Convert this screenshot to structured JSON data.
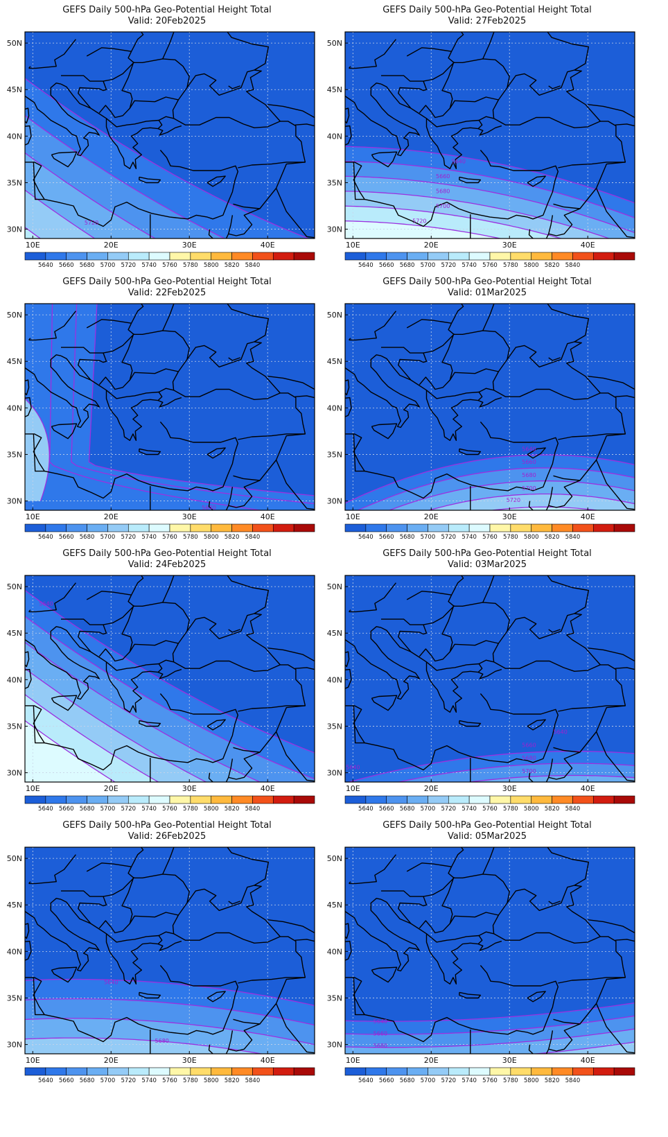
{
  "title": "GEFS Daily 500-hPa Geo-Potential Height Total",
  "valid_prefix": "Valid:",
  "axes": {
    "lat_labels": [
      "50N",
      "45N",
      "40N",
      "35N",
      "30N"
    ],
    "lat_values": [
      50,
      45,
      40,
      35,
      30
    ],
    "lon_labels": [
      "10E",
      "20E",
      "30E",
      "40E"
    ],
    "lon_values": [
      10,
      20,
      30,
      40
    ],
    "lon_range": [
      9,
      46
    ],
    "lat_range": [
      29,
      51.2
    ]
  },
  "colorbar": {
    "labels": [
      "5640",
      "5660",
      "5680",
      "5700",
      "5720",
      "5740",
      "5760",
      "5780",
      "5800",
      "5820",
      "5840"
    ],
    "colors": [
      "#1c5ed8",
      "#2f78ea",
      "#4d93ef",
      "#6aaef3",
      "#94cbf6",
      "#b9ebfb",
      "#ddfbff",
      "#fff7a8",
      "#ffdc6a",
      "#ffb93d",
      "#ff8a25",
      "#f2511a",
      "#d21c0f",
      "#a90a08"
    ]
  },
  "levels": [
    5640,
    5660,
    5680,
    5700,
    5720,
    5740,
    5760
  ],
  "map_colors": {
    "land_sea_line": "#000000",
    "contour": "#9b30e0",
    "grid": "#c8d4e8"
  },
  "panels": [
    {
      "id": "p1",
      "valid": "20Feb2025",
      "col": 0,
      "row": 0,
      "type": "diag",
      "k": 0.62,
      "b": 46.2,
      "step": 4.0,
      "labels": [
        {
          "text": "5720",
          "lon": 17.5,
          "lat": 30.7
        }
      ]
    },
    {
      "id": "p2",
      "valid": "27Feb2025",
      "col": 1,
      "row": 0,
      "type": "horiz",
      "base": 37.3,
      "slope": -0.16,
      "curv": -0.004,
      "step": 1.6,
      "labels": [
        {
          "text": "5660",
          "lon": 21.5,
          "lat": 35.7
        },
        {
          "text": "5680",
          "lon": 21.5,
          "lat": 34.1
        },
        {
          "text": "5700",
          "lon": 21.5,
          "lat": 32.5
        },
        {
          "text": "5720",
          "lon": 18.5,
          "lat": 30.9
        },
        {
          "text": "5640",
          "lon": 23.5,
          "lat": 37.3
        }
      ]
    },
    {
      "id": "p3",
      "valid": "22Feb2025",
      "col": 0,
      "row": 1,
      "type": "west",
      "xs": [
        12.5,
        15.6,
        18.2
      ],
      "labels": [
        {
          "text": "5640",
          "lon": 32.5,
          "lat": 29.3
        }
      ]
    },
    {
      "id": "p4",
      "valid": "01Mar2025",
      "col": 1,
      "row": 1,
      "type": "horiz",
      "base": 34.5,
      "slope": 0.12,
      "curv": -0.008,
      "step": 1.4,
      "labels": [
        {
          "text": "5660",
          "lon": 32.5,
          "lat": 34.2
        },
        {
          "text": "5680",
          "lon": 32.5,
          "lat": 32.8
        },
        {
          "text": "5700",
          "lon": 32.5,
          "lat": 31.4
        },
        {
          "text": "5720",
          "lon": 30.5,
          "lat": 30.1
        },
        {
          "text": "5640",
          "lon": 32.5,
          "lat": 35.6
        }
      ]
    },
    {
      "id": "p5",
      "valid": "24Feb2025",
      "col": 0,
      "row": 2,
      "type": "diag",
      "k": 0.62,
      "b": 49.6,
      "step": 2.8,
      "labels": [
        {
          "text": "5640",
          "lon": 11.7,
          "lat": 48.2
        }
      ]
    },
    {
      "id": "p6",
      "valid": "03Mar2025",
      "col": 1,
      "row": 2,
      "type": "horiz",
      "base": 31.8,
      "slope": 0.09,
      "curv": -0.004,
      "step": 1.3,
      "labels": [
        {
          "text": "5660",
          "lon": 32.5,
          "lat": 33.0
        },
        {
          "text": "5680",
          "lon": 32.5,
          "lat": 31.6
        },
        {
          "text": "5700",
          "lon": 32.5,
          "lat": 30.2
        },
        {
          "text": "5640",
          "lon": 36.5,
          "lat": 34.4
        },
        {
          "text": "5640",
          "lon": 10.0,
          "lat": 30.6
        }
      ]
    },
    {
      "id": "p7",
      "valid": "26Feb2025",
      "col": 0,
      "row": 3,
      "type": "horiz",
      "base": 36.6,
      "slope": -0.07,
      "curv": -0.003,
      "step": 2.1,
      "labels": [
        {
          "text": "5640",
          "lon": 20.0,
          "lat": 36.7
        },
        {
          "text": "5680",
          "lon": 26.5,
          "lat": 30.4
        }
      ]
    },
    {
      "id": "p8",
      "valid": "05Mar2025",
      "col": 1,
      "row": 3,
      "type": "horiz",
      "base": 32.8,
      "slope": 0.05,
      "curv": 0.002,
      "step": 1.4,
      "labels": [
        {
          "text": "5640",
          "lon": 13.5,
          "lat": 32.5
        },
        {
          "text": "5660",
          "lon": 13.5,
          "lat": 31.2
        },
        {
          "text": "5680",
          "lon": 13.5,
          "lat": 29.9
        }
      ]
    }
  ]
}
